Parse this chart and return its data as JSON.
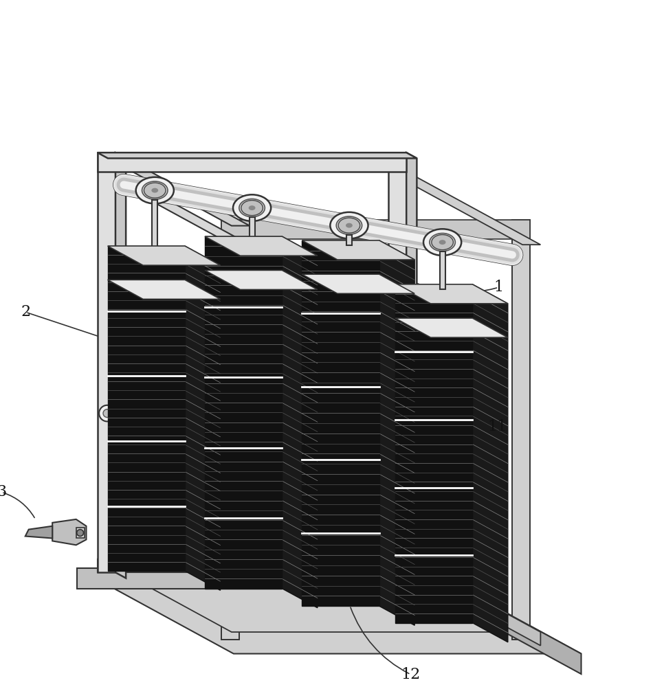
{
  "bg_color": "#ffffff",
  "line_color": "#1a1a1a",
  "frame_fill": "#e8e8e8",
  "frame_edge": "#333333",
  "base_fill": "#d8d8d8",
  "folder_dark": "#111111",
  "folder_stripe": "#888888",
  "folder_top_fill": "#e0e0e0",
  "rail_fill": "#e0e0e0",
  "rail_edge": "#444444",
  "ring_fill": "#f0f0f0",
  "ring_edge": "#333333",
  "label_fontsize": 16,
  "figsize": [
    9.5,
    10.0
  ],
  "dpi": 100
}
